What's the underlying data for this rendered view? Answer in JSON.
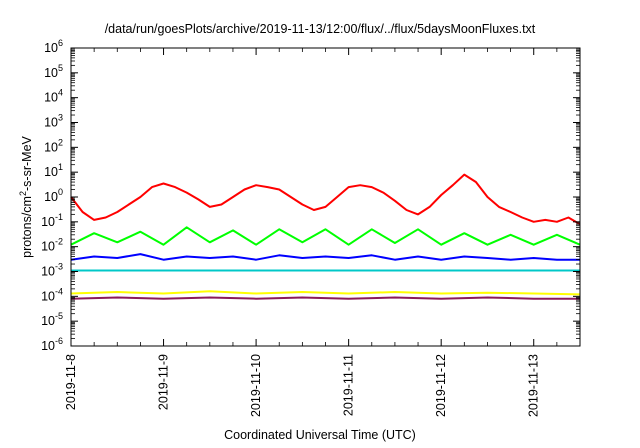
{
  "chart_data": {
    "type": "line",
    "title": "/data/run/goesPlots/archive/2019-11-13/12:00/flux/../flux/5daysMoonFluxes.txt",
    "xlabel": "Coordinated Universal Time (UTC)",
    "ylabel": {
      "base": "protons/cm",
      "sup": "2",
      "rest": "-s-sr-MeV"
    },
    "yscale": "log",
    "ylim": [
      1e-06,
      1000000.0
    ],
    "xlim": [
      "2019-11-08",
      "2019-11-13 12:00"
    ],
    "grid": false,
    "legend": "none",
    "x_ticks": [
      "2019-11-8",
      "2019-11-9",
      "2019-11-10",
      "2019-11-11",
      "2019-11-12",
      "2019-11-13"
    ],
    "y_ticks": [
      {
        "base": "10",
        "exp": "6"
      },
      {
        "base": "10",
        "exp": "5"
      },
      {
        "base": "10",
        "exp": "4"
      },
      {
        "base": "10",
        "exp": "3"
      },
      {
        "base": "10",
        "exp": "2"
      },
      {
        "base": "10",
        "exp": "1"
      },
      {
        "base": "10",
        "exp": "0"
      },
      {
        "base": "10",
        "exp": "-1"
      },
      {
        "base": "10",
        "exp": "-2"
      },
      {
        "base": "10",
        "exp": "-3"
      },
      {
        "base": "10",
        "exp": "-4"
      },
      {
        "base": "10",
        "exp": "-5"
      },
      {
        "base": "10",
        "exp": "-6"
      }
    ],
    "series": [
      {
        "color": "#ff0000",
        "x": [
          "2019-11-08 00:00",
          "2019-11-08 03:00",
          "2019-11-08 06:00",
          "2019-11-08 09:00",
          "2019-11-08 12:00",
          "2019-11-08 15:00",
          "2019-11-08 18:00",
          "2019-11-08 21:00",
          "2019-11-09 00:00",
          "2019-11-09 03:00",
          "2019-11-09 06:00",
          "2019-11-09 09:00",
          "2019-11-09 12:00",
          "2019-11-09 15:00",
          "2019-11-09 18:00",
          "2019-11-09 21:00",
          "2019-11-10 00:00",
          "2019-11-10 03:00",
          "2019-11-10 06:00",
          "2019-11-10 09:00",
          "2019-11-10 12:00",
          "2019-11-10 15:00",
          "2019-11-10 18:00",
          "2019-11-10 21:00",
          "2019-11-11 00:00",
          "2019-11-11 03:00",
          "2019-11-11 06:00",
          "2019-11-11 09:00",
          "2019-11-11 12:00",
          "2019-11-11 15:00",
          "2019-11-11 18:00",
          "2019-11-11 21:00",
          "2019-11-12 00:00",
          "2019-11-12 03:00",
          "2019-11-12 06:00",
          "2019-11-12 09:00",
          "2019-11-12 12:00",
          "2019-11-12 15:00",
          "2019-11-12 18:00",
          "2019-11-12 21:00",
          "2019-11-13 00:00",
          "2019-11-13 03:00",
          "2019-11-13 06:00",
          "2019-11-13 09:00",
          "2019-11-13 12:00"
        ],
        "values": [
          1.0,
          0.25,
          0.12,
          0.15,
          0.25,
          0.5,
          1.0,
          2.5,
          3.5,
          2.5,
          1.5,
          0.8,
          0.4,
          0.5,
          1.0,
          2.0,
          3.0,
          2.5,
          2.0,
          1.0,
          0.5,
          0.3,
          0.4,
          1.0,
          2.5,
          3.0,
          2.5,
          1.5,
          0.7,
          0.3,
          0.2,
          0.4,
          1.2,
          3.0,
          8.0,
          4.0,
          1.0,
          0.4,
          0.25,
          0.15,
          0.1,
          0.12,
          0.1,
          0.15,
          0.08
        ]
      },
      {
        "color": "#00ff00",
        "x": [
          "2019-11-08 00:00",
          "2019-11-08 06:00",
          "2019-11-08 12:00",
          "2019-11-08 18:00",
          "2019-11-09 00:00",
          "2019-11-09 06:00",
          "2019-11-09 12:00",
          "2019-11-09 18:00",
          "2019-11-10 00:00",
          "2019-11-10 06:00",
          "2019-11-10 12:00",
          "2019-11-10 18:00",
          "2019-11-11 00:00",
          "2019-11-11 06:00",
          "2019-11-11 12:00",
          "2019-11-11 18:00",
          "2019-11-12 00:00",
          "2019-11-12 06:00",
          "2019-11-12 12:00",
          "2019-11-12 18:00",
          "2019-11-13 00:00",
          "2019-11-13 06:00",
          "2019-11-13 12:00"
        ],
        "values": [
          0.012,
          0.035,
          0.015,
          0.04,
          0.012,
          0.06,
          0.015,
          0.045,
          0.012,
          0.05,
          0.015,
          0.05,
          0.012,
          0.05,
          0.014,
          0.05,
          0.012,
          0.035,
          0.012,
          0.03,
          0.012,
          0.03,
          0.012
        ]
      },
      {
        "color": "#0000ff",
        "x": [
          "2019-11-08 00:00",
          "2019-11-08 06:00",
          "2019-11-08 12:00",
          "2019-11-08 18:00",
          "2019-11-09 00:00",
          "2019-11-09 06:00",
          "2019-11-09 12:00",
          "2019-11-09 18:00",
          "2019-11-10 00:00",
          "2019-11-10 06:00",
          "2019-11-10 12:00",
          "2019-11-10 18:00",
          "2019-11-11 00:00",
          "2019-11-11 06:00",
          "2019-11-11 12:00",
          "2019-11-11 18:00",
          "2019-11-12 00:00",
          "2019-11-12 06:00",
          "2019-11-12 12:00",
          "2019-11-12 18:00",
          "2019-11-13 00:00",
          "2019-11-13 06:00",
          "2019-11-13 12:00"
        ],
        "values": [
          0.003,
          0.004,
          0.0035,
          0.005,
          0.003,
          0.004,
          0.0035,
          0.004,
          0.003,
          0.0045,
          0.0035,
          0.004,
          0.0035,
          0.0045,
          0.003,
          0.004,
          0.003,
          0.004,
          0.0035,
          0.003,
          0.0035,
          0.003,
          0.003
        ]
      },
      {
        "color": "#00c8c8",
        "x": [
          "2019-11-08 00:00",
          "2019-11-09 00:00",
          "2019-11-10 00:00",
          "2019-11-11 00:00",
          "2019-11-12 00:00",
          "2019-11-13 00:00",
          "2019-11-13 12:00"
        ],
        "values": [
          0.0011,
          0.0011,
          0.0011,
          0.0011,
          0.0011,
          0.0011,
          0.0011
        ]
      },
      {
        "color": "#ffff00",
        "x": [
          "2019-11-08 00:00",
          "2019-11-08 12:00",
          "2019-11-09 00:00",
          "2019-11-09 12:00",
          "2019-11-10 00:00",
          "2019-11-10 12:00",
          "2019-11-11 00:00",
          "2019-11-11 12:00",
          "2019-11-12 00:00",
          "2019-11-12 12:00",
          "2019-11-13 00:00",
          "2019-11-13 12:00"
        ],
        "values": [
          0.00013,
          0.00015,
          0.00013,
          0.00016,
          0.00013,
          0.00015,
          0.00013,
          0.00015,
          0.00013,
          0.00014,
          0.00013,
          0.00012
        ]
      },
      {
        "color": "#8b1a5a",
        "x": [
          "2019-11-08 00:00",
          "2019-11-08 12:00",
          "2019-11-09 00:00",
          "2019-11-09 12:00",
          "2019-11-10 00:00",
          "2019-11-10 12:00",
          "2019-11-11 00:00",
          "2019-11-11 12:00",
          "2019-11-12 00:00",
          "2019-11-12 12:00",
          "2019-11-13 00:00",
          "2019-11-13 12:00"
        ],
        "values": [
          8e-05,
          9e-05,
          8e-05,
          9e-05,
          8e-05,
          9e-05,
          8e-05,
          9e-05,
          8e-05,
          9e-05,
          8e-05,
          8e-05
        ]
      }
    ]
  }
}
